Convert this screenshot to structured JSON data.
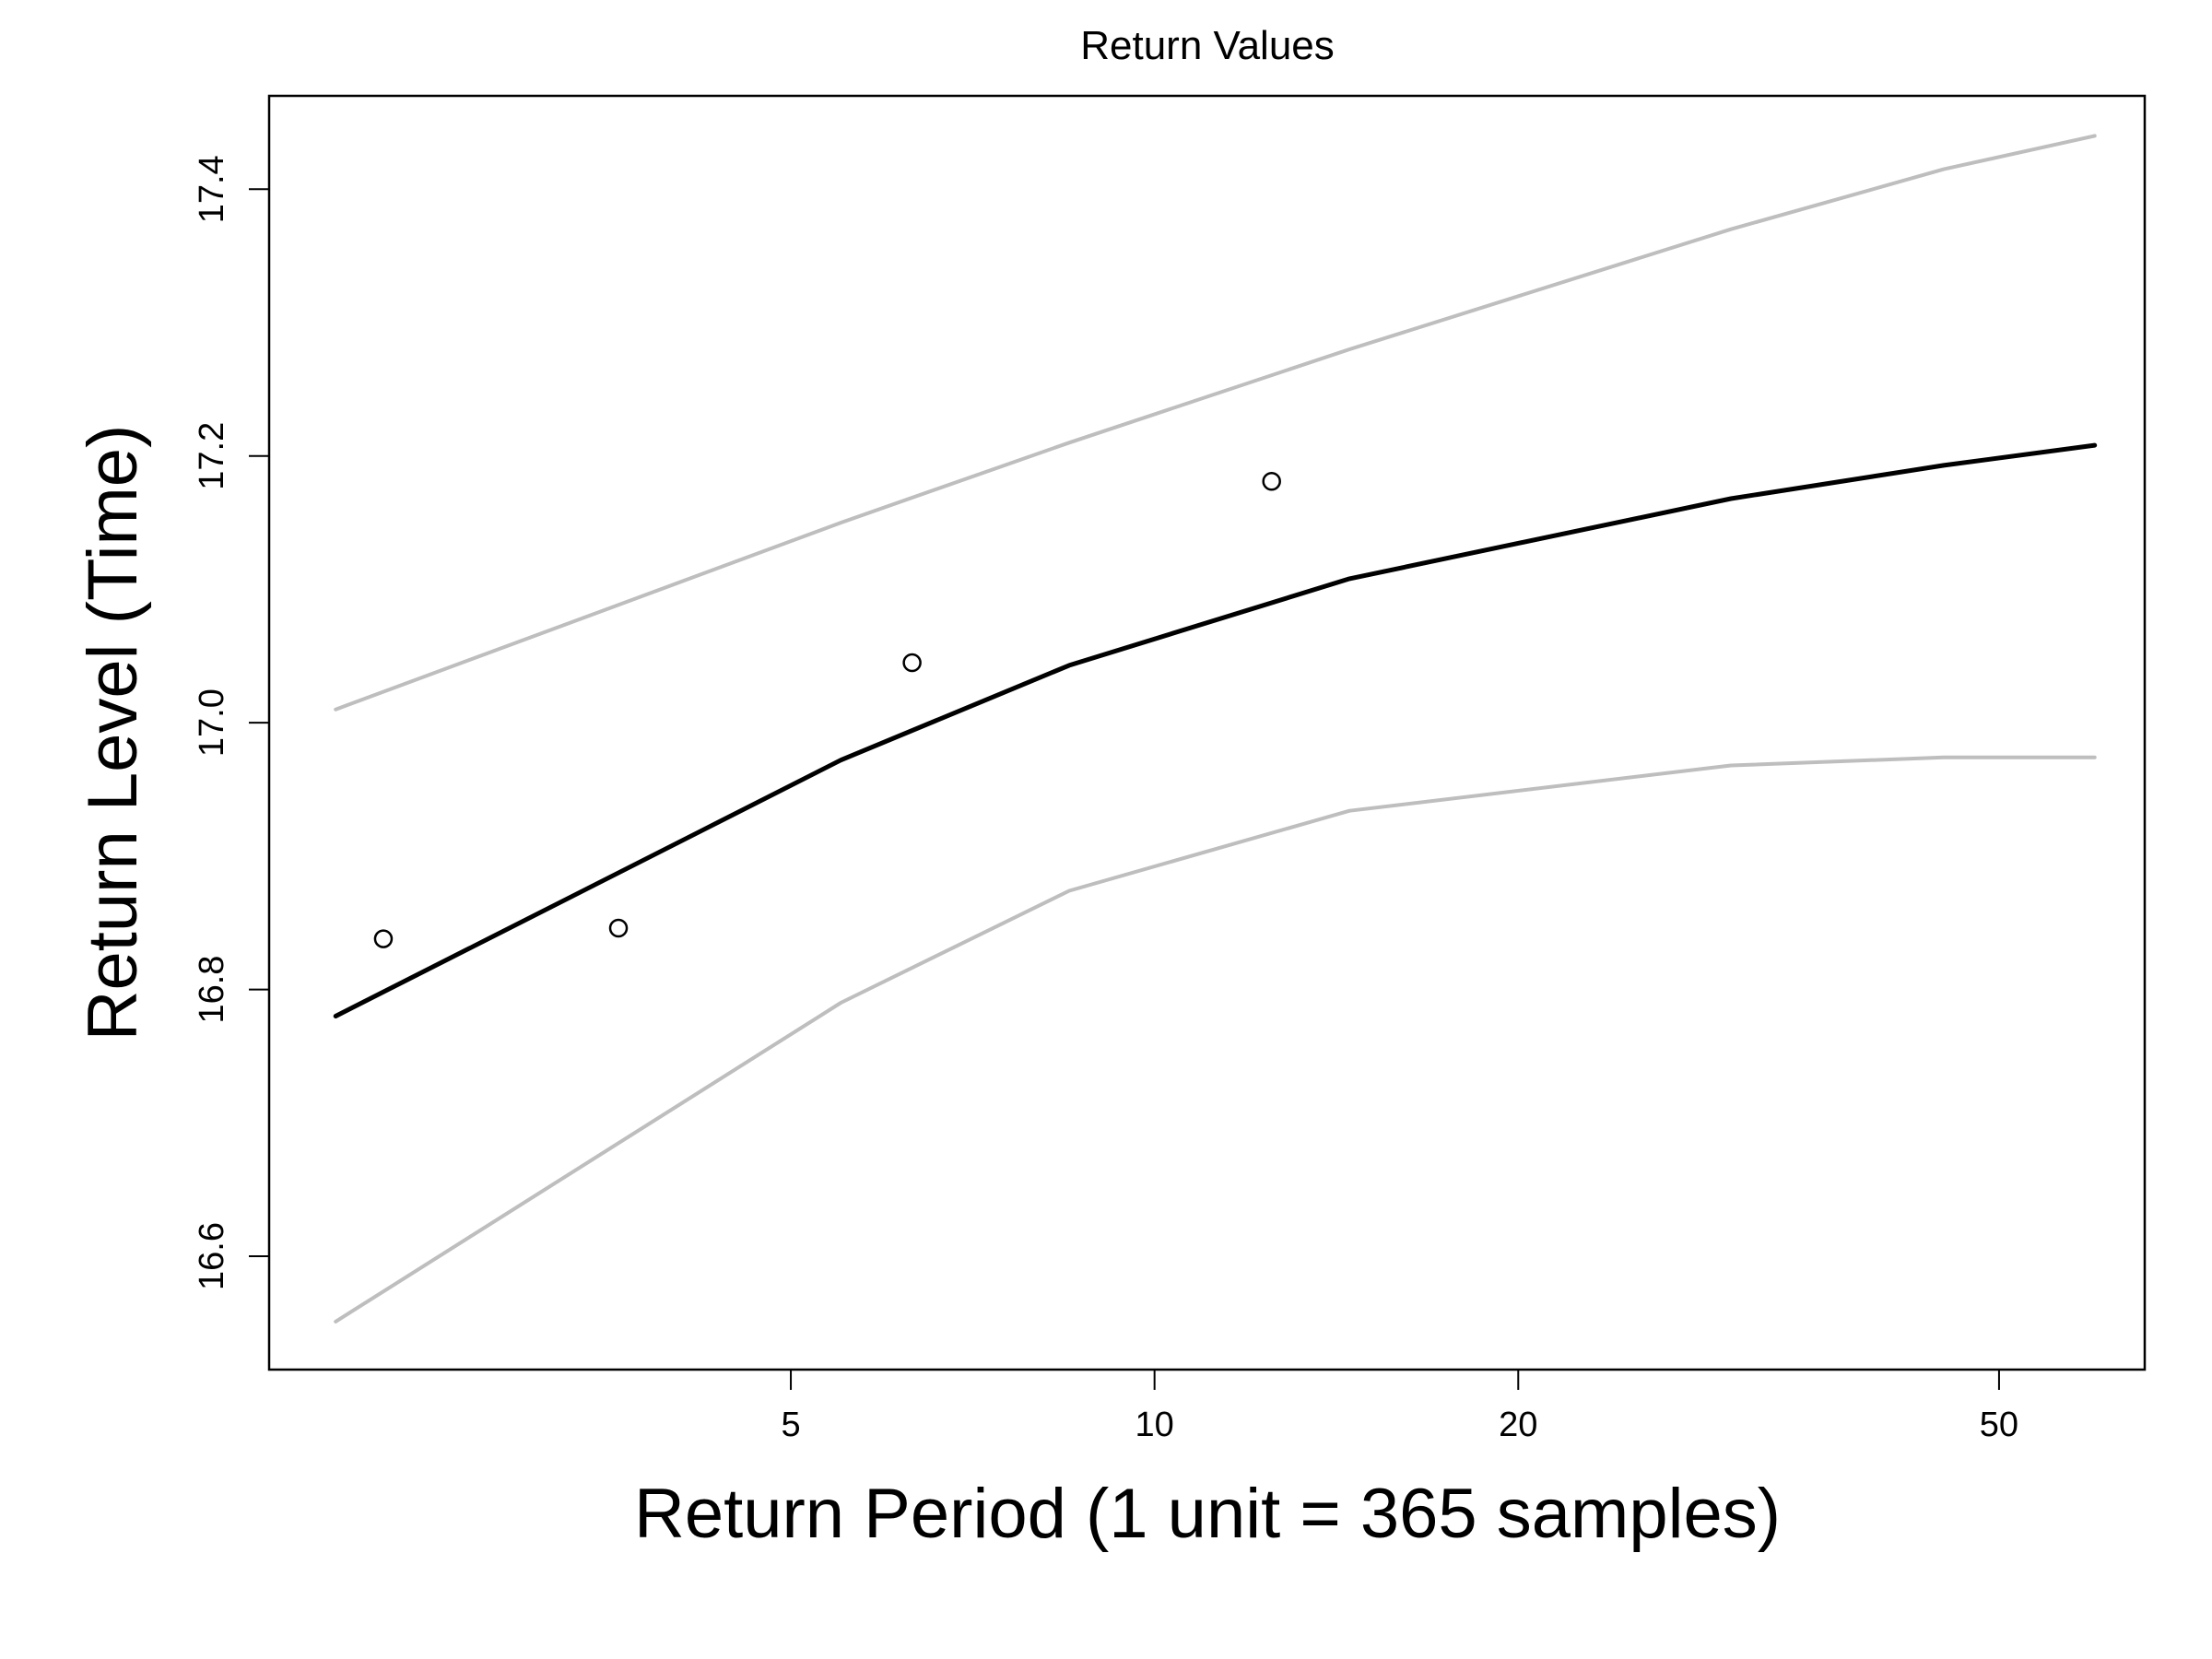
{
  "chart_data": {
    "type": "line",
    "title": "Return Values",
    "xlabel": "Return Period (1 unit = 365 samples)",
    "ylabel": "Return Level (Time)",
    "x_scale": "log",
    "xlim": [
      1.85,
      66
    ],
    "ylim": [
      16.515,
      17.47
    ],
    "x_ticks": [
      5,
      10,
      20,
      50
    ],
    "y_ticks": [
      16.6,
      16.8,
      17.0,
      17.2,
      17.4
    ],
    "grid": false,
    "colors": {
      "estimate": "#000000",
      "bounds": "#bebebe",
      "observed": "#000000"
    },
    "series": [
      {
        "role": "upper_bound",
        "x": [
          2.1,
          5.5,
          8.5,
          14.5,
          30,
          45,
          60
        ],
        "y": [
          17.01,
          17.15,
          17.21,
          17.28,
          17.37,
          17.415,
          17.44
        ]
      },
      {
        "role": "estimate",
        "x": [
          2.1,
          5.5,
          8.5,
          14.5,
          30,
          45,
          60
        ],
        "y": [
          16.78,
          16.972,
          17.043,
          17.108,
          17.168,
          17.193,
          17.208
        ]
      },
      {
        "role": "lower_bound",
        "x": [
          2.1,
          5.5,
          8.5,
          14.5,
          30,
          45,
          60
        ],
        "y": [
          16.551,
          16.79,
          16.874,
          16.934,
          16.968,
          16.974,
          16.974
        ]
      }
    ],
    "points": {
      "x": [
        2.3,
        3.6,
        6.3,
        12.5
      ],
      "y": [
        16.838,
        16.846,
        17.045,
        17.181
      ]
    }
  }
}
